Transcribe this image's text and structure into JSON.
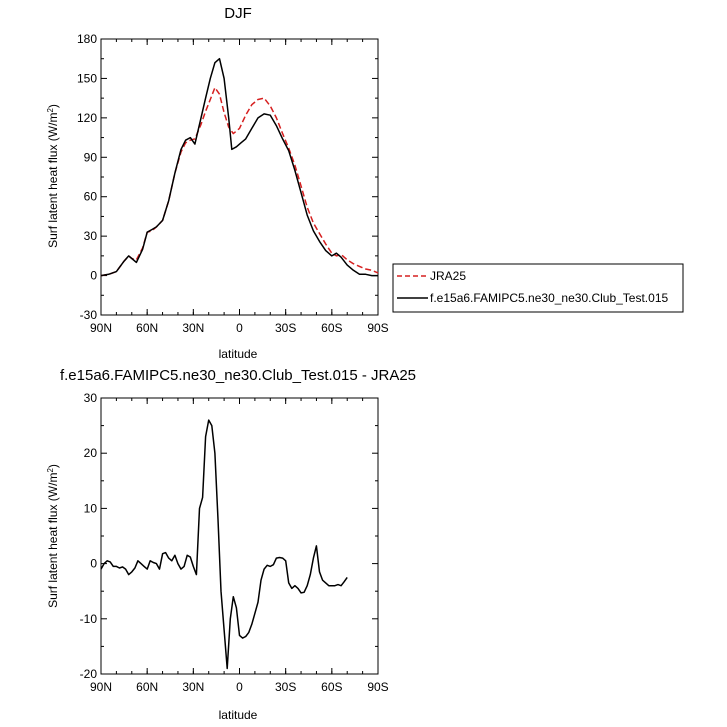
{
  "colors": {
    "obs": "#d62020",
    "model": "#000000"
  },
  "chart_data": [
    {
      "type": "line",
      "title": "DJF",
      "xlabel": "latitude",
      "ylabel": "Surf latent heat flux (W/m",
      "ylabel_sup": "2",
      "ylabel_end": ")",
      "xlim": [
        -90,
        90
      ],
      "ylim": [
        -30,
        180
      ],
      "xticks": [
        -90,
        -60,
        -30,
        0,
        30,
        60,
        90
      ],
      "xtick_labels": [
        "90N",
        "60N",
        "30N",
        "0",
        "30S",
        "60S",
        "90S"
      ],
      "yticks": [
        -30,
        0,
        30,
        60,
        90,
        120,
        150,
        180
      ],
      "ytick_labels": [
        "-30",
        "0",
        "30",
        "60",
        "90",
        "120",
        "150",
        "180"
      ],
      "legend": "right",
      "series": [
        {
          "name": "JRA25",
          "style": "dashed",
          "color": "#d62020",
          "points": [
            [
              -90,
              0
            ],
            [
              -85,
              1
            ],
            [
              -80,
              3
            ],
            [
              -75,
              11
            ],
            [
              -72,
              15
            ],
            [
              -70,
              13
            ],
            [
              -67,
              12
            ],
            [
              -63,
              21
            ],
            [
              -60,
              33
            ],
            [
              -57,
              34
            ],
            [
              -54,
              37
            ],
            [
              -50,
              42
            ],
            [
              -46,
              57
            ],
            [
              -42,
              78
            ],
            [
              -38,
              94
            ],
            [
              -35,
              101
            ],
            [
              -32,
              103
            ],
            [
              -29,
              104
            ],
            [
              -25,
              115
            ],
            [
              -22,
              125
            ],
            [
              -19,
              134
            ],
            [
              -16,
              143
            ],
            [
              -13,
              138
            ],
            [
              -10,
              124
            ],
            [
              -7,
              113
            ],
            [
              -4,
              108
            ],
            [
              0,
              112
            ],
            [
              4,
              122
            ],
            [
              8,
              130
            ],
            [
              12,
              134
            ],
            [
              16,
              135
            ],
            [
              20,
              129
            ],
            [
              24,
              120
            ],
            [
              28,
              108
            ],
            [
              32,
              97
            ],
            [
              36,
              84
            ],
            [
              40,
              68
            ],
            [
              44,
              52
            ],
            [
              48,
              40
            ],
            [
              52,
              32
            ],
            [
              56,
              24
            ],
            [
              60,
              17
            ],
            [
              63,
              15
            ],
            [
              66,
              16
            ],
            [
              70,
              12
            ],
            [
              74,
              9
            ],
            [
              78,
              7
            ],
            [
              82,
              5
            ],
            [
              86,
              4
            ],
            [
              90,
              2
            ]
          ]
        },
        {
          "name": "f.e15a6.FAMIPC5.ne30_ne30.Club_Test.015",
          "style": "solid",
          "color": "#000000",
          "points": [
            [
              -90,
              0
            ],
            [
              -85,
              1
            ],
            [
              -80,
              3
            ],
            [
              -75,
              11
            ],
            [
              -72,
              15
            ],
            [
              -70,
              13
            ],
            [
              -67,
              10
            ],
            [
              -63,
              20
            ],
            [
              -60,
              33
            ],
            [
              -57,
              35
            ],
            [
              -54,
              37
            ],
            [
              -50,
              42
            ],
            [
              -46,
              57
            ],
            [
              -42,
              78
            ],
            [
              -38,
              96
            ],
            [
              -35,
              103
            ],
            [
              -32,
              105
            ],
            [
              -29,
              100
            ],
            [
              -25,
              120
            ],
            [
              -22,
              135
            ],
            [
              -19,
              150
            ],
            [
              -16,
              162
            ],
            [
              -13,
              165
            ],
            [
              -10,
              150
            ],
            [
              -7,
              120
            ],
            [
              -5,
              96
            ],
            [
              -2,
              98
            ],
            [
              1,
              101
            ],
            [
              4,
              104
            ],
            [
              8,
              112
            ],
            [
              12,
              120
            ],
            [
              16,
              123
            ],
            [
              20,
              122
            ],
            [
              24,
              114
            ],
            [
              28,
              104
            ],
            [
              32,
              95
            ],
            [
              36,
              80
            ],
            [
              40,
              63
            ],
            [
              44,
              46
            ],
            [
              48,
              34
            ],
            [
              52,
              26
            ],
            [
              56,
              19
            ],
            [
              60,
              15
            ],
            [
              63,
              17
            ],
            [
              66,
              14
            ],
            [
              70,
              8
            ],
            [
              74,
              4
            ],
            [
              78,
              1
            ],
            [
              82,
              1
            ],
            [
              86,
              0
            ],
            [
              90,
              0
            ]
          ]
        }
      ]
    },
    {
      "type": "line",
      "title": "f.e15a6.FAMIPC5.ne30_ne30.Club_Test.015 - JRA25",
      "xlabel": "latitude",
      "ylabel": "Surf latent heat flux (W/m",
      "ylabel_sup": "2",
      "ylabel_end": ")",
      "xlim": [
        -90,
        90
      ],
      "ylim": [
        -20,
        30
      ],
      "xticks": [
        -90,
        -60,
        -30,
        0,
        30,
        60,
        90
      ],
      "xtick_labels": [
        "90N",
        "60N",
        "30N",
        "0",
        "30S",
        "60S",
        "90S"
      ],
      "yticks": [
        -20,
        -10,
        0,
        10,
        20,
        30
      ],
      "ytick_labels": [
        "-20",
        "-10",
        "0",
        "10",
        "20",
        "30"
      ],
      "series": [
        {
          "style": "solid",
          "color": "#000000",
          "points": [
            [
              -90,
              -1
            ],
            [
              -88,
              0
            ],
            [
              -86,
              0.5
            ],
            [
              -84,
              0.3
            ],
            [
              -82,
              -0.5
            ],
            [
              -80,
              -0.5
            ],
            [
              -78,
              -0.8
            ],
            [
              -76,
              -0.6
            ],
            [
              -74,
              -1
            ],
            [
              -72,
              -2
            ],
            [
              -70,
              -1.5
            ],
            [
              -68,
              -0.8
            ],
            [
              -66,
              0.5
            ],
            [
              -64,
              0
            ],
            [
              -62,
              -0.5
            ],
            [
              -60,
              -1
            ],
            [
              -58,
              0.5
            ],
            [
              -56,
              0.2
            ],
            [
              -54,
              0
            ],
            [
              -52,
              -1
            ],
            [
              -50,
              1.8
            ],
            [
              -48,
              2
            ],
            [
              -46,
              1
            ],
            [
              -44,
              0.5
            ],
            [
              -42,
              1.5
            ],
            [
              -40,
              0
            ],
            [
              -38,
              -1
            ],
            [
              -36,
              -0.5
            ],
            [
              -34,
              1.5
            ],
            [
              -32,
              1.2
            ],
            [
              -30,
              -0.5
            ],
            [
              -28,
              -2
            ],
            [
              -26,
              10
            ],
            [
              -24,
              12
            ],
            [
              -22,
              23
            ],
            [
              -20,
              26
            ],
            [
              -18,
              25
            ],
            [
              -16,
              20
            ],
            [
              -14,
              8
            ],
            [
              -12,
              -5
            ],
            [
              -10,
              -12
            ],
            [
              -8,
              -19
            ],
            [
              -6,
              -10
            ],
            [
              -4,
              -6
            ],
            [
              -2,
              -8
            ],
            [
              0,
              -13
            ],
            [
              2,
              -13.5
            ],
            [
              4,
              -13.2
            ],
            [
              6,
              -12.5
            ],
            [
              8,
              -11
            ],
            [
              10,
              -9
            ],
            [
              12,
              -7
            ],
            [
              14,
              -3
            ],
            [
              16,
              -1
            ],
            [
              18,
              -0.3
            ],
            [
              20,
              -0.5
            ],
            [
              22,
              -0.2
            ],
            [
              24,
              1
            ],
            [
              26,
              1.1
            ],
            [
              28,
              1
            ],
            [
              30,
              0.5
            ],
            [
              32,
              -3.5
            ],
            [
              34,
              -4.5
            ],
            [
              36,
              -4
            ],
            [
              38,
              -4.5
            ],
            [
              40,
              -5.3
            ],
            [
              42,
              -5.2
            ],
            [
              44,
              -4
            ],
            [
              46,
              -2
            ],
            [
              48,
              1
            ],
            [
              50,
              3.2
            ],
            [
              52,
              -1.5
            ],
            [
              54,
              -3
            ],
            [
              56,
              -3.5
            ],
            [
              58,
              -4
            ],
            [
              60,
              -4
            ],
            [
              62,
              -4
            ],
            [
              64,
              -3.8
            ],
            [
              66,
              -4
            ],
            [
              68,
              -3.3
            ],
            [
              70,
              -2.5
            ]
          ]
        }
      ]
    }
  ]
}
